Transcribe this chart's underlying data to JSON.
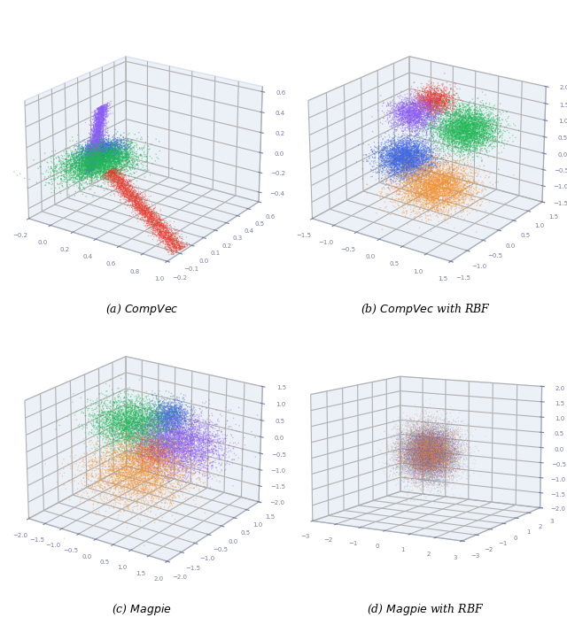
{
  "title_a": "(a) $CompVec$",
  "title_b": "(b) $CompVec$ with RBF",
  "title_c": "(c) $Magpie$",
  "title_d": "(d) $Magpie$ with RBF",
  "colors": [
    "#1db954",
    "#e8392a",
    "#8b5cf6",
    "#4169e1",
    "#f5922f"
  ],
  "pane_color": [
    0.86,
    0.89,
    0.94,
    1.0
  ],
  "grid_color": "white",
  "n_points": 4000,
  "seed": 7,
  "figsize": [
    6.4,
    7.06
  ],
  "dpi": 100
}
